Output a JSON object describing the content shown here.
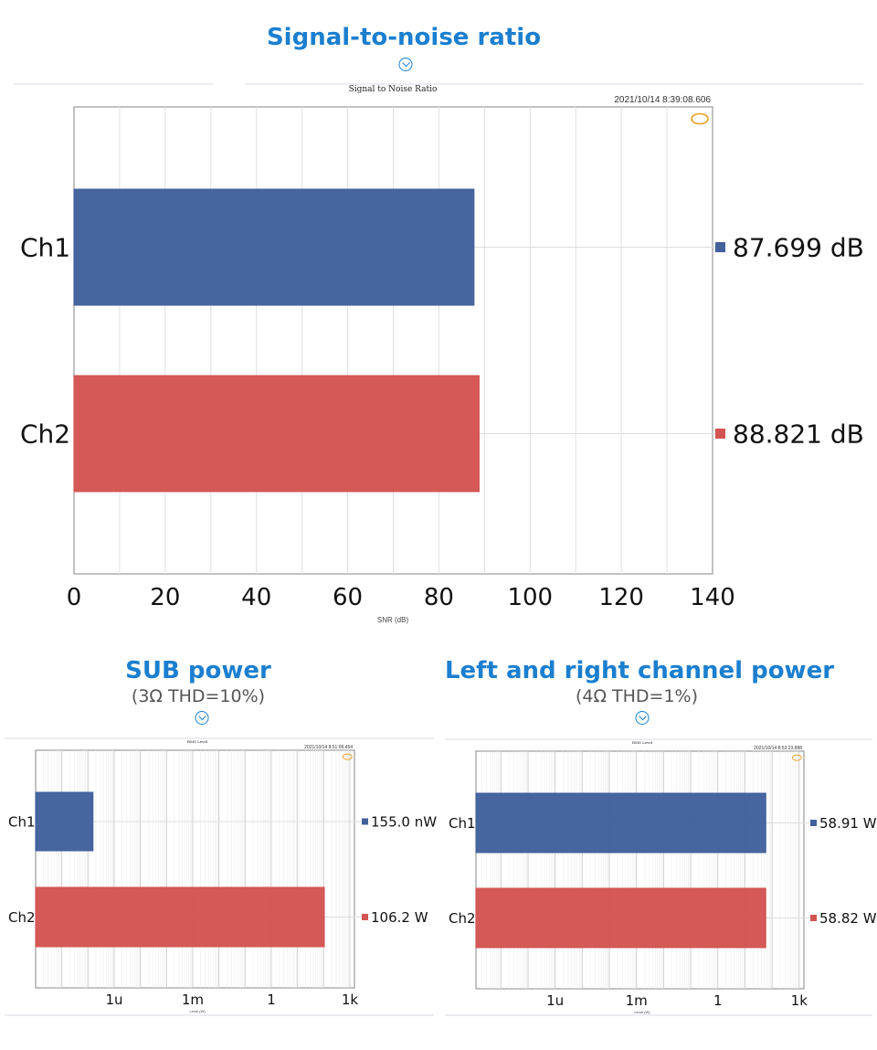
{
  "headings": {
    "snr": {
      "title": "Signal-to-noise ratio"
    },
    "sub": {
      "title": "SUB power",
      "subtitle": "(3Ω THD=10%)"
    },
    "lr": {
      "title": "Left and right channel power",
      "subtitle": "(4Ω THD=1%)"
    }
  },
  "colors": {
    "heading": "#1b7fcf",
    "ch1": "#41609c",
    "ch2": "#d35452",
    "grid": "#dcdcdc"
  },
  "chart_data": [
    {
      "type": "bar",
      "orientation": "horizontal",
      "title": "Signal to Noise Ratio",
      "timestamp": "2021/10/14 8:39:08.606",
      "xlabel": "SNR (dB)",
      "xscale": "linear",
      "xlim": [
        0,
        140
      ],
      "xticks": [
        0,
        20,
        40,
        60,
        80,
        100,
        120,
        140
      ],
      "xtick_labels": [
        "0",
        "20",
        "40",
        "60",
        "80",
        "100",
        "120",
        "140"
      ],
      "categories": [
        "Ch1",
        "Ch2"
      ],
      "values": [
        87.699,
        88.821
      ],
      "value_labels": [
        "87.699  dB",
        "88.821  dB"
      ],
      "grid": true
    },
    {
      "type": "bar",
      "orientation": "horizontal",
      "title": "RMS Level",
      "timestamp": "2021/10/14 8:51:09.454",
      "xlabel": "Level (W)",
      "xscale": "log",
      "xlim": [
        1e-09,
        1500
      ],
      "xticks": [
        1e-06,
        0.001,
        1,
        1000
      ],
      "xtick_labels": [
        "1u",
        "1m",
        "1",
        "1k"
      ],
      "categories": [
        "Ch1",
        "Ch2"
      ],
      "values": [
        1.55e-07,
        106.2
      ],
      "value_labels": [
        "155.0  nW",
        "106.2    W"
      ],
      "grid": true
    },
    {
      "type": "bar",
      "orientation": "horizontal",
      "title": "RMS Level",
      "timestamp": "2021/10/14 8:53:23.888",
      "xlabel": "Level (W)",
      "xscale": "log",
      "xlim": [
        1.2e-09,
        1500
      ],
      "xticks": [
        1e-06,
        0.001,
        1,
        1000
      ],
      "xtick_labels": [
        "1u",
        "1m",
        "1",
        "1k"
      ],
      "categories": [
        "Ch1",
        "Ch2"
      ],
      "values": [
        58.91,
        58.82
      ],
      "value_labels": [
        "58.91  W",
        "58.82  W"
      ],
      "grid": true
    }
  ]
}
